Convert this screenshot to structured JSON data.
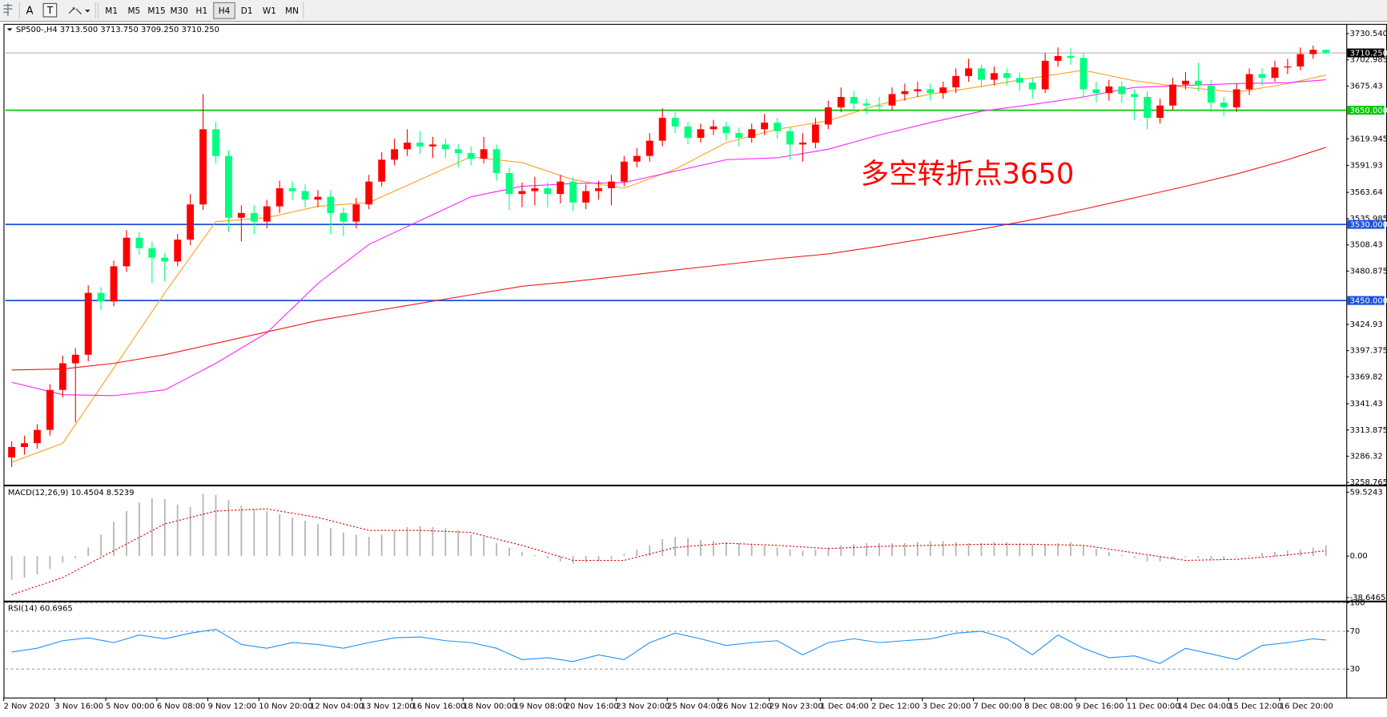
{
  "toolbar": {
    "text_tool": "A",
    "label_tool": "T",
    "timeframes": [
      "M1",
      "M5",
      "M15",
      "M30",
      "H1",
      "H4",
      "D1",
      "W1",
      "MN"
    ],
    "active": "H4"
  },
  "chart_data": [
    {
      "type": "candlestick",
      "title": "SP500-,H4  3713.500 3713.750 3709.250 3710.250",
      "annotation": "多空转折点3650",
      "annotation_color": "#ff0000",
      "up_color": "#ff0000",
      "down_color": "#00ff7f",
      "xlim": [
        -0.5,
        104.6
      ],
      "ylim": [
        3255.98,
        3739.83
      ],
      "xticks": [
        {
          "value": 0,
          "label": "2 Nov 2020"
        },
        {
          "value": 4,
          "label": "3 Nov 16:00"
        },
        {
          "value": 8,
          "label": "5 Nov 00:00"
        },
        {
          "value": 12,
          "label": "6 Nov 08:00"
        },
        {
          "value": 16,
          "label": "9 Nov 12:00"
        },
        {
          "value": 20,
          "label": "10 Nov 20:00"
        },
        {
          "value": 24,
          "label": "12 Nov 04:00"
        },
        {
          "value": 28,
          "label": "13 Nov 12:00"
        },
        {
          "value": 32,
          "label": "16 Nov 16:00"
        },
        {
          "value": 36,
          "label": "18 Nov 00:00"
        },
        {
          "value": 40,
          "label": "19 Nov 08:00"
        },
        {
          "value": 44,
          "label": "20 Nov 16:00"
        },
        {
          "value": 48,
          "label": "23 Nov 20:00"
        },
        {
          "value": 52,
          "label": "25 Nov 04:00"
        },
        {
          "value": 56,
          "label": "26 Nov 12:00"
        },
        {
          "value": 60,
          "label": "29 Nov 23:00"
        },
        {
          "value": 64,
          "label": "1 Dec 04:00"
        },
        {
          "value": 68,
          "label": "2 Dec 12:00"
        },
        {
          "value": 72,
          "label": "3 Dec 20:00"
        },
        {
          "value": 76,
          "label": "7 Dec 00:00"
        },
        {
          "value": 80,
          "label": "8 Dec 08:00"
        },
        {
          "value": 84,
          "label": "9 Dec 16:00"
        },
        {
          "value": 88,
          "label": "11 Dec 00:00"
        },
        {
          "value": 92,
          "label": "14 Dec 04:00"
        },
        {
          "value": 96,
          "label": "15 Dec 12:00"
        },
        {
          "value": 100,
          "label": "16 Dec 20:00"
        }
      ],
      "yticks": [
        {
          "value": 3730.54,
          "label": "3730.540"
        },
        3702.985,
        3675.43,
        3619.945,
        3591.93,
        3563.64,
        3535.985,
        3508.43,
        3480.875,
        3424.93,
        3397.375,
        3369.82,
        3341.43,
        3313.875,
        3286.32,
        3258.765
      ],
      "levels": [
        {
          "value": 3650,
          "label": "3650.000",
          "color": "#00c800"
        },
        {
          "value": 3530,
          "label": "3530.000",
          "color": "#1e50dc"
        },
        {
          "value": 3450,
          "label": "3450.000",
          "color": "#1e50dc"
        }
      ],
      "last_price_label": "3710.250",
      "open": [
        3285,
        3296,
        3300,
        3314,
        3356,
        3384,
        3393,
        3458,
        3449,
        3486,
        3516,
        3505,
        3495,
        3491,
        3514,
        3551,
        3630,
        3602,
        3537,
        3542,
        3533,
        3549,
        3568,
        3565,
        3556,
        3559,
        3542,
        3533,
        3551,
        3575,
        3598,
        3609,
        3616,
        3612,
        3614,
        3609,
        3605,
        3599,
        3609,
        3584,
        3562,
        3565,
        3568,
        3562,
        3575,
        3553,
        3565,
        3568,
        3575,
        3596,
        3602,
        3618,
        3642,
        3633,
        3621,
        3630,
        3633,
        3626,
        3621,
        3630,
        3637,
        3628,
        3614,
        3616,
        3635,
        3653,
        3664,
        3657,
        3655,
        3655,
        3667,
        3670,
        3672,
        3668,
        3674,
        3686,
        3694,
        3682,
        3689,
        3684,
        3679,
        3672,
        3702,
        3707,
        3705,
        3672,
        3668,
        3675,
        3667,
        3664,
        3642,
        3655,
        3677,
        3681,
        3676,
        3658,
        3653,
        3672,
        3688,
        3684,
        3695,
        3696,
        3709,
        3713.5
      ],
      "high": [
        3302,
        3308,
        3320,
        3362,
        3392,
        3400,
        3466,
        3464,
        3492,
        3524,
        3522,
        3512,
        3500,
        3520,
        3562,
        3667,
        3638,
        3608,
        3550,
        3550,
        3556,
        3576,
        3575,
        3572,
        3566,
        3566,
        3548,
        3558,
        3582,
        3606,
        3620,
        3630,
        3628,
        3622,
        3620,
        3614,
        3612,
        3622,
        3614,
        3590,
        3574,
        3580,
        3574,
        3582,
        3580,
        3572,
        3576,
        3582,
        3602,
        3610,
        3626,
        3652,
        3648,
        3638,
        3636,
        3640,
        3638,
        3632,
        3636,
        3646,
        3642,
        3632,
        3626,
        3642,
        3660,
        3674,
        3670,
        3662,
        3664,
        3674,
        3678,
        3680,
        3678,
        3680,
        3694,
        3704,
        3698,
        3696,
        3694,
        3690,
        3684,
        3710,
        3716,
        3715,
        3710,
        3680,
        3682,
        3680,
        3672,
        3670,
        3662,
        3684,
        3690,
        3700,
        3682,
        3664,
        3678,
        3694,
        3694,
        3702,
        3704,
        3716,
        3718,
        3713.75
      ],
      "low": [
        3275,
        3288,
        3294,
        3308,
        3348,
        3322,
        3386,
        3440,
        3444,
        3480,
        3498,
        3468,
        3470,
        3486,
        3508,
        3545,
        3594,
        3522,
        3512,
        3520,
        3526,
        3542,
        3556,
        3548,
        3548,
        3520,
        3518,
        3526,
        3546,
        3570,
        3592,
        3602,
        3604,
        3600,
        3600,
        3590,
        3592,
        3594,
        3576,
        3545,
        3548,
        3550,
        3548,
        3552,
        3544,
        3546,
        3556,
        3550,
        3570,
        3590,
        3596,
        3612,
        3626,
        3614,
        3616,
        3624,
        3618,
        3612,
        3616,
        3624,
        3620,
        3598,
        3596,
        3610,
        3630,
        3648,
        3650,
        3646,
        3648,
        3650,
        3660,
        3664,
        3660,
        3662,
        3668,
        3680,
        3674,
        3676,
        3676,
        3670,
        3662,
        3668,
        3696,
        3698,
        3664,
        3658,
        3660,
        3658,
        3640,
        3630,
        3636,
        3650,
        3672,
        3670,
        3648,
        3644,
        3648,
        3666,
        3676,
        3680,
        3688,
        3692,
        3704,
        3709.25
      ],
      "close": [
        3296,
        3300,
        3314,
        3356,
        3384,
        3393,
        3458,
        3449,
        3486,
        3516,
        3505,
        3495,
        3491,
        3514,
        3551,
        3630,
        3602,
        3537,
        3542,
        3533,
        3549,
        3568,
        3565,
        3556,
        3559,
        3542,
        3533,
        3551,
        3575,
        3598,
        3609,
        3616,
        3612,
        3614,
        3609,
        3605,
        3599,
        3609,
        3584,
        3562,
        3565,
        3568,
        3562,
        3575,
        3553,
        3565,
        3568,
        3575,
        3596,
        3602,
        3618,
        3642,
        3633,
        3621,
        3630,
        3633,
        3626,
        3621,
        3630,
        3637,
        3628,
        3614,
        3616,
        3635,
        3653,
        3664,
        3657,
        3655,
        3655,
        3667,
        3670,
        3672,
        3668,
        3674,
        3686,
        3694,
        3682,
        3689,
        3684,
        3679,
        3672,
        3702,
        3707,
        3705,
        3672,
        3668,
        3675,
        3667,
        3664,
        3642,
        3655,
        3677,
        3681,
        3676,
        3658,
        3653,
        3672,
        3688,
        3684,
        3695,
        3696,
        3709,
        3713.5,
        3710.25
      ],
      "series": [
        {
          "color": "#ffa020",
          "x": [
            0,
            4,
            8,
            12,
            16,
            20,
            24,
            28,
            32,
            36,
            40,
            44,
            48,
            52,
            56,
            60,
            64,
            68,
            72,
            76,
            80,
            84,
            88,
            92,
            96,
            100,
            103
          ],
          "values": [
            3280,
            3300,
            3379,
            3458,
            3533,
            3537,
            3549,
            3553,
            3577,
            3601,
            3595,
            3577,
            3568,
            3588,
            3616,
            3630,
            3639,
            3656,
            3667,
            3675,
            3684,
            3692,
            3681,
            3674,
            3669,
            3678,
            3687
          ]
        },
        {
          "color": "#ff20ff",
          "x": [
            0,
            4,
            8,
            12,
            16,
            20,
            24,
            28,
            32,
            36,
            40,
            44,
            48,
            52,
            56,
            60,
            64,
            68,
            72,
            76,
            80,
            84,
            88,
            92,
            96,
            100,
            103
          ],
          "values": [
            3364,
            3351,
            3350,
            3356,
            3384,
            3416,
            3468,
            3509,
            3534,
            3559,
            3570,
            3573,
            3574,
            3586,
            3598,
            3600,
            3609,
            3624,
            3637,
            3649,
            3656,
            3664,
            3674,
            3676,
            3678,
            3679,
            3682
          ]
        },
        {
          "color": "#f01818",
          "x": [
            0,
            4,
            8,
            12,
            16,
            20,
            24,
            28,
            32,
            36,
            40,
            44,
            48,
            52,
            56,
            60,
            64,
            68,
            72,
            76,
            80,
            84,
            88,
            92,
            96,
            100,
            103
          ],
          "values": [
            3377,
            3378,
            3384,
            3393,
            3405,
            3417,
            3429,
            3438,
            3447,
            3456,
            3465,
            3470,
            3476,
            3482,
            3488,
            3494,
            3499,
            3507,
            3516,
            3525,
            3535,
            3546,
            3558,
            3570,
            3583,
            3598,
            3611
          ]
        }
      ]
    },
    {
      "type": "combo",
      "title": "MACD(12,26,9) 10.4504 8.5239",
      "xlim": [
        -0.5,
        104.6
      ],
      "ylim": [
        -41.08,
        64.55
      ],
      "yticks": [
        59.5243,
        {
          "value": 0,
          "label": "0.00"
        },
        -38.6465
      ],
      "series": [
        {
          "type": "bar",
          "color": "#b4b4b4",
          "values": [
            -22,
            -20,
            -17,
            -12,
            -6,
            -2,
            8,
            20,
            32,
            42,
            50,
            54,
            53,
            48,
            46,
            58,
            57,
            52,
            47,
            44,
            42,
            39,
            36,
            33,
            30,
            26,
            22,
            20,
            18,
            20,
            24,
            27,
            28,
            27,
            26,
            24,
            20,
            18,
            12,
            8,
            4,
            1,
            -2,
            -5,
            -7,
            -6,
            -5,
            -3,
            2,
            6,
            10,
            16,
            18,
            17,
            15,
            14,
            13,
            12,
            11,
            10,
            8,
            6,
            5,
            6,
            8,
            10,
            11,
            12,
            12,
            12,
            12,
            13,
            14,
            14,
            13,
            12,
            12,
            13,
            13,
            12,
            11,
            11,
            12,
            13,
            10,
            7,
            4,
            1,
            -2,
            -5,
            -5,
            -3,
            -1,
            -2,
            -3,
            -3,
            -1,
            1,
            3,
            4,
            5,
            6,
            8,
            10
          ]
        },
        {
          "type": "line",
          "color": "#e00000",
          "dash": true,
          "x": [
            0,
            4,
            8,
            12,
            16,
            20,
            24,
            28,
            32,
            36,
            40,
            44,
            48,
            52,
            56,
            60,
            64,
            68,
            72,
            76,
            80,
            84,
            88,
            92,
            96,
            100,
            103
          ],
          "values": [
            -36,
            -20,
            5,
            30,
            42,
            44,
            36,
            24,
            24,
            22,
            10,
            -4,
            -4,
            8,
            12,
            10,
            7,
            9,
            10,
            11,
            11,
            10,
            3,
            -4,
            -3,
            1,
            5
          ]
        }
      ]
    },
    {
      "type": "line",
      "title": "RSI(14) 60.6965",
      "xlim": [
        -0.5,
        104.6
      ],
      "ylim": [
        0,
        100
      ],
      "yticks": [
        30,
        70,
        100
      ],
      "grid": true,
      "series": [
        {
          "color": "#1e90ff",
          "x": [
            0,
            2,
            4,
            6,
            8,
            10,
            12,
            14,
            16,
            18,
            20,
            22,
            24,
            26,
            28,
            30,
            32,
            34,
            36,
            38,
            40,
            42,
            44,
            46,
            48,
            50,
            52,
            54,
            56,
            58,
            60,
            62,
            64,
            66,
            68,
            70,
            72,
            74,
            76,
            78,
            80,
            82,
            84,
            86,
            88,
            90,
            92,
            94,
            96,
            98,
            100,
            102,
            103
          ],
          "values": [
            48,
            52,
            60,
            63,
            58,
            66,
            62,
            68,
            72,
            56,
            52,
            58,
            56,
            52,
            58,
            63,
            64,
            60,
            58,
            52,
            40,
            42,
            38,
            45,
            40,
            58,
            68,
            62,
            55,
            58,
            60,
            45,
            58,
            62,
            58,
            60,
            62,
            68,
            70,
            62,
            45,
            66,
            52,
            42,
            44,
            36,
            52,
            46,
            40,
            55,
            58,
            62,
            60.6965
          ]
        }
      ]
    }
  ]
}
